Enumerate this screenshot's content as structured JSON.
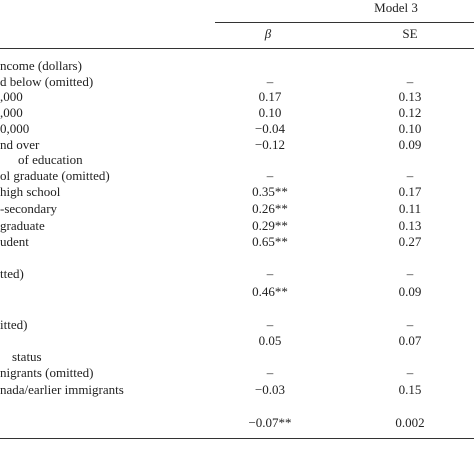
{
  "header": {
    "model": "Model 3",
    "columns": [
      "β",
      "SE"
    ]
  },
  "table": {
    "rows": [
      {
        "label": "ncome (dollars)"
      },
      {
        "label": "d below (omitted)",
        "beta": "–",
        "se": "–"
      },
      {
        "label": ",000",
        "beta": "0.17",
        "se": "0.13"
      },
      {
        "label": ",000",
        "beta": "0.10",
        "se": "0.12"
      },
      {
        "label": "0,000",
        "beta": "−0.04",
        "se": "0.10"
      },
      {
        "label": "nd over",
        "beta": "−0.12",
        "se": "0.09"
      },
      {
        "label": "of education"
      },
      {
        "label": "ol graduate (omitted)",
        "beta": "–",
        "se": "–"
      },
      {
        "label": "high school",
        "beta": "0.35**",
        "se": "0.17"
      },
      {
        "label": "-secondary",
        "beta": "0.26**",
        "se": "0.11"
      },
      {
        "label": "graduate",
        "beta": "0.29**",
        "se": "0.13"
      },
      {
        "label": "udent",
        "beta": "0.65**",
        "se": "0.27"
      },
      {
        "label": "tted)",
        "beta": "–",
        "se": "–"
      },
      {
        "beta": "0.46**",
        "se": "0.09"
      },
      {
        "label": "itted)",
        "beta": "–",
        "se": "–"
      },
      {
        "beta": "0.05",
        "se": "0.07"
      },
      {
        "label": "status"
      },
      {
        "label": "nigrants (omitted)",
        "beta": "–",
        "se": "–"
      },
      {
        "label": "nada/earlier immigrants",
        "beta": "−0.03",
        "se": "0.15"
      },
      {
        "beta": "−0.07**",
        "se": "0.002"
      }
    ]
  }
}
